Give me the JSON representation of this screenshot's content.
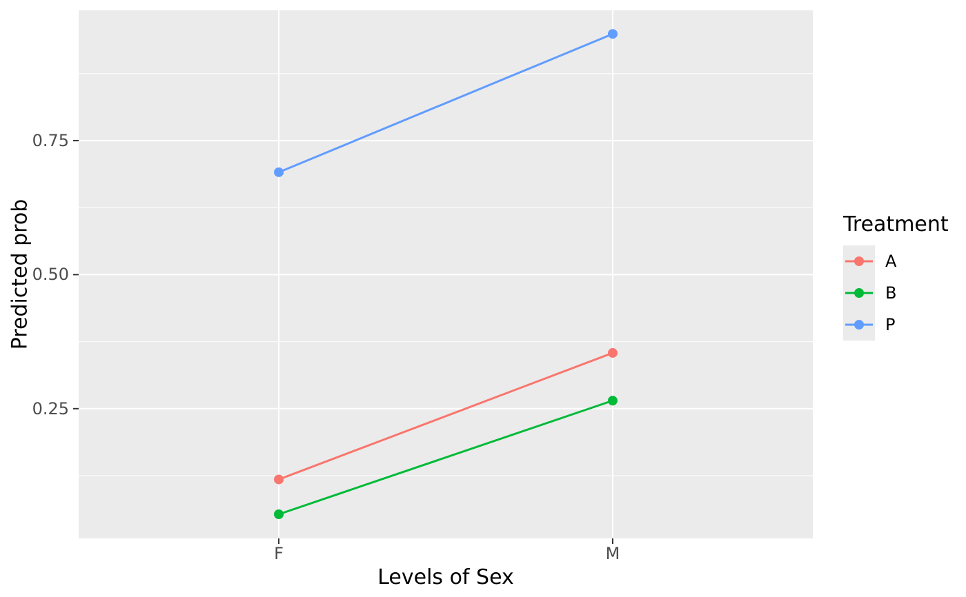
{
  "chart_data": {
    "type": "line",
    "title": "",
    "xlabel": "Levels of Sex",
    "ylabel": "Predicted prob",
    "categories": [
      "F",
      "M"
    ],
    "series": [
      {
        "name": "A",
        "color": "#F8766D",
        "values": [
          0.118,
          0.354
        ]
      },
      {
        "name": "B",
        "color": "#00BA38",
        "values": [
          0.053,
          0.265
        ]
      },
      {
        "name": "P",
        "color": "#619CFF",
        "values": [
          0.691,
          0.949
        ]
      }
    ],
    "legend": {
      "title": "Treatment",
      "position": "right"
    },
    "y_axis": {
      "tick_values": [
        0.25,
        0.5,
        0.75
      ],
      "tick_labels": [
        "0.25",
        "0.50",
        "0.75"
      ],
      "minor_tick_values": [
        0.125,
        0.375,
        0.625,
        0.875
      ],
      "ylim": [
        0.008,
        0.993
      ]
    },
    "x_axis": {
      "tick_labels": [
        "F",
        "M"
      ]
    },
    "grid": "on",
    "style": {
      "panel_bg": "#EBEBEB",
      "grid_color": "#FFFFFF",
      "tick_mark_color": "#333333",
      "tick_label_color": "#4D4D4D",
      "line_width": 3,
      "point_radius": 7
    }
  }
}
